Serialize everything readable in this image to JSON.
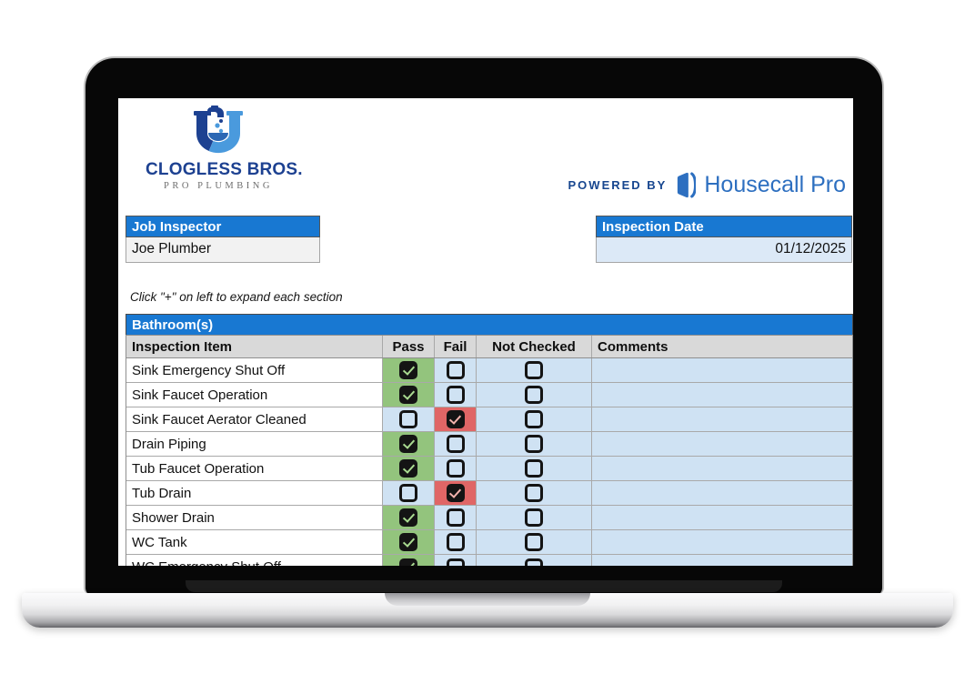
{
  "colors": {
    "header_blue": "#1878d2",
    "pass_green": "#93c47d",
    "fail_red": "#e06666",
    "cell_blue": "#cfe2f3",
    "date_cell_blue": "#dce9f7",
    "value_gray": "#f2f2f2",
    "col_header_gray": "#d9d9d9",
    "grid_gray": "#a9a9a9",
    "navy": "#1d4191",
    "housecall_blue": "#2d6fc0"
  },
  "screen": {
    "logo": {
      "brand": "CLOGLESS BROS.",
      "tagline": "PRO PLUMBING"
    },
    "powered_by": {
      "label": "POWERED BY",
      "brand": "Housecall Pro"
    },
    "inspector": {
      "label": "Job Inspector",
      "value": "Joe Plumber"
    },
    "inspection_date": {
      "label": "Inspection Date",
      "value": "01/12/2025"
    },
    "hint": "Click \"+\" on left to expand each section",
    "section": {
      "title": "Bathroom(s)"
    },
    "table": {
      "columns": [
        "Inspection Item",
        "Pass",
        "Fail",
        "Not Checked",
        "Comments"
      ],
      "rows": [
        {
          "item": "Sink Emergency Shut Off",
          "pass": true,
          "fail": false,
          "not_checked": false,
          "comments": ""
        },
        {
          "item": "Sink Faucet Operation",
          "pass": true,
          "fail": false,
          "not_checked": false,
          "comments": ""
        },
        {
          "item": "Sink Faucet Aerator Cleaned",
          "pass": false,
          "fail": true,
          "not_checked": false,
          "comments": ""
        },
        {
          "item": "Drain Piping",
          "pass": true,
          "fail": false,
          "not_checked": false,
          "comments": ""
        },
        {
          "item": "Tub Faucet Operation",
          "pass": true,
          "fail": false,
          "not_checked": false,
          "comments": ""
        },
        {
          "item": "Tub Drain",
          "pass": false,
          "fail": true,
          "not_checked": false,
          "comments": ""
        },
        {
          "item": "Shower Drain",
          "pass": true,
          "fail": false,
          "not_checked": false,
          "comments": ""
        },
        {
          "item": "WC Tank",
          "pass": true,
          "fail": false,
          "not_checked": false,
          "comments": ""
        },
        {
          "item": "WC Emergency Shut Off",
          "pass": true,
          "fail": false,
          "not_checked": false,
          "comments": ""
        }
      ]
    }
  }
}
